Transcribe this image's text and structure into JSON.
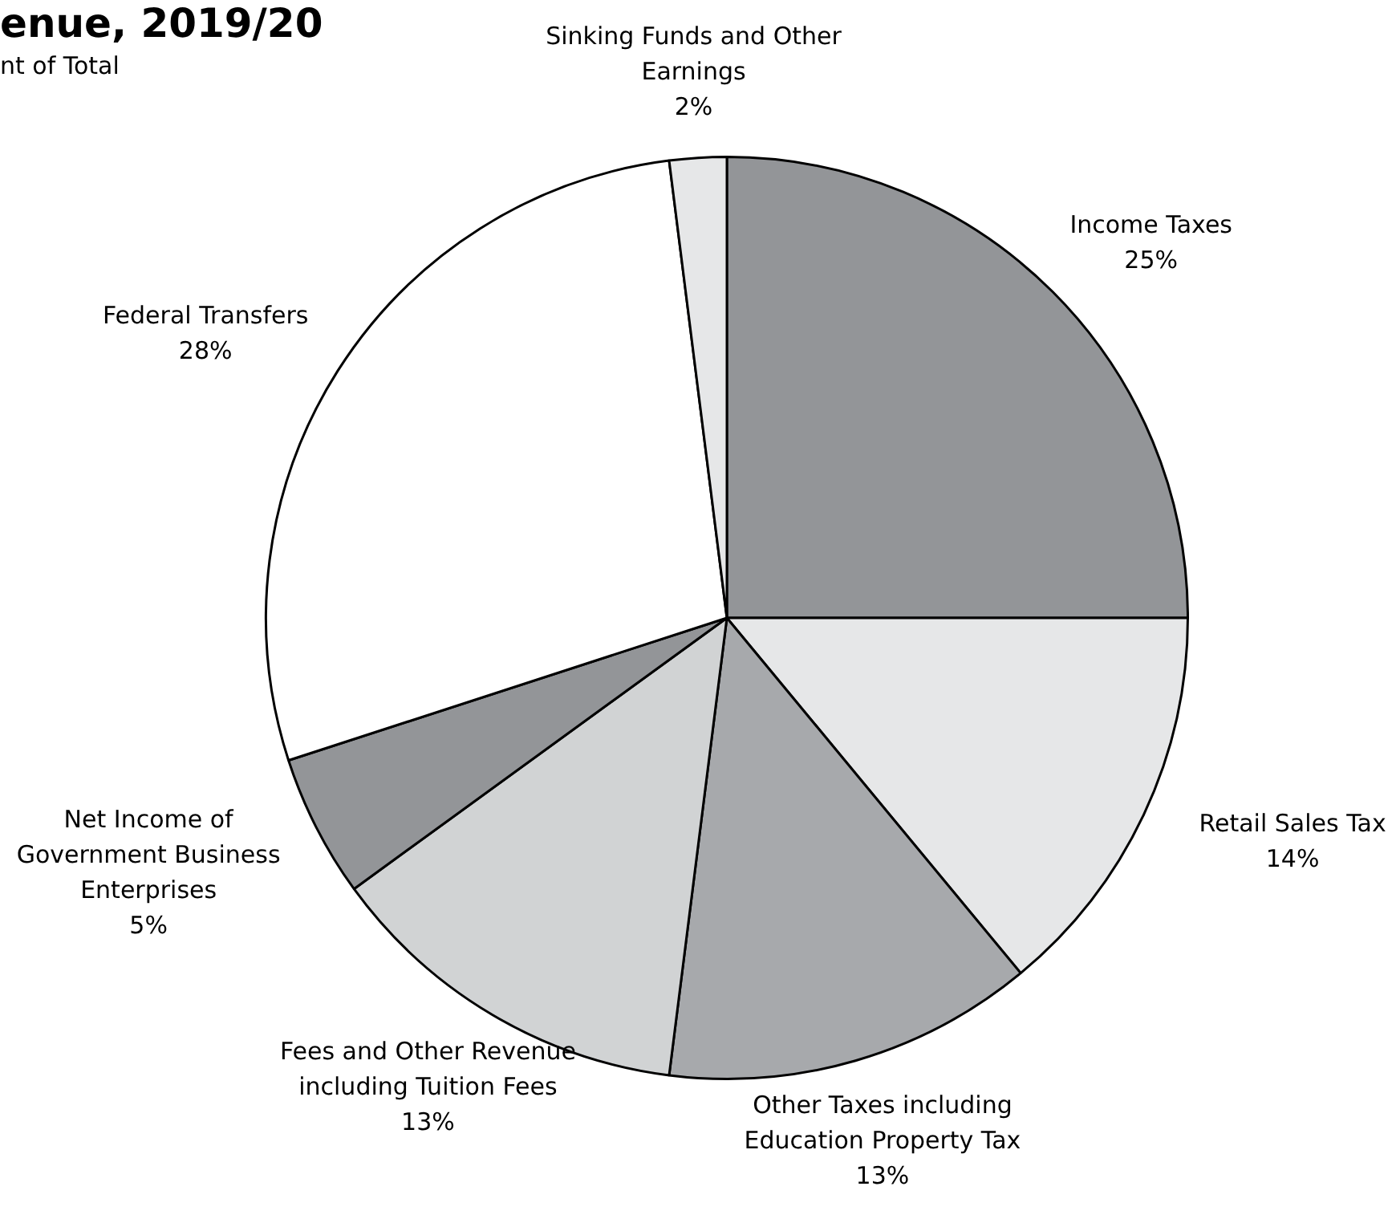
{
  "chart_data": {
    "type": "pie",
    "title": "enue, 2019/20",
    "subtitle": "nt of Total",
    "categories": [
      "Income Taxes",
      "Retail Sales Tax",
      "Other Taxes including Education Property Tax",
      "Fees and Other Revenue including Tuition Fees",
      "Net Income of Government Business Enterprises",
      "Federal Transfers",
      "Sinking Funds and Other Earnings"
    ],
    "values": [
      25,
      14,
      13,
      13,
      5,
      28,
      2
    ],
    "colors": [
      "#939598",
      "#e6e7e8",
      "#a7a9ac",
      "#d1d3d4",
      "#939598",
      "#ffffff",
      "#e6e7e8"
    ],
    "value_labels": [
      "25%",
      "14%",
      "13%",
      "13%",
      "5%",
      "28%",
      "2%"
    ],
    "legend": false
  }
}
